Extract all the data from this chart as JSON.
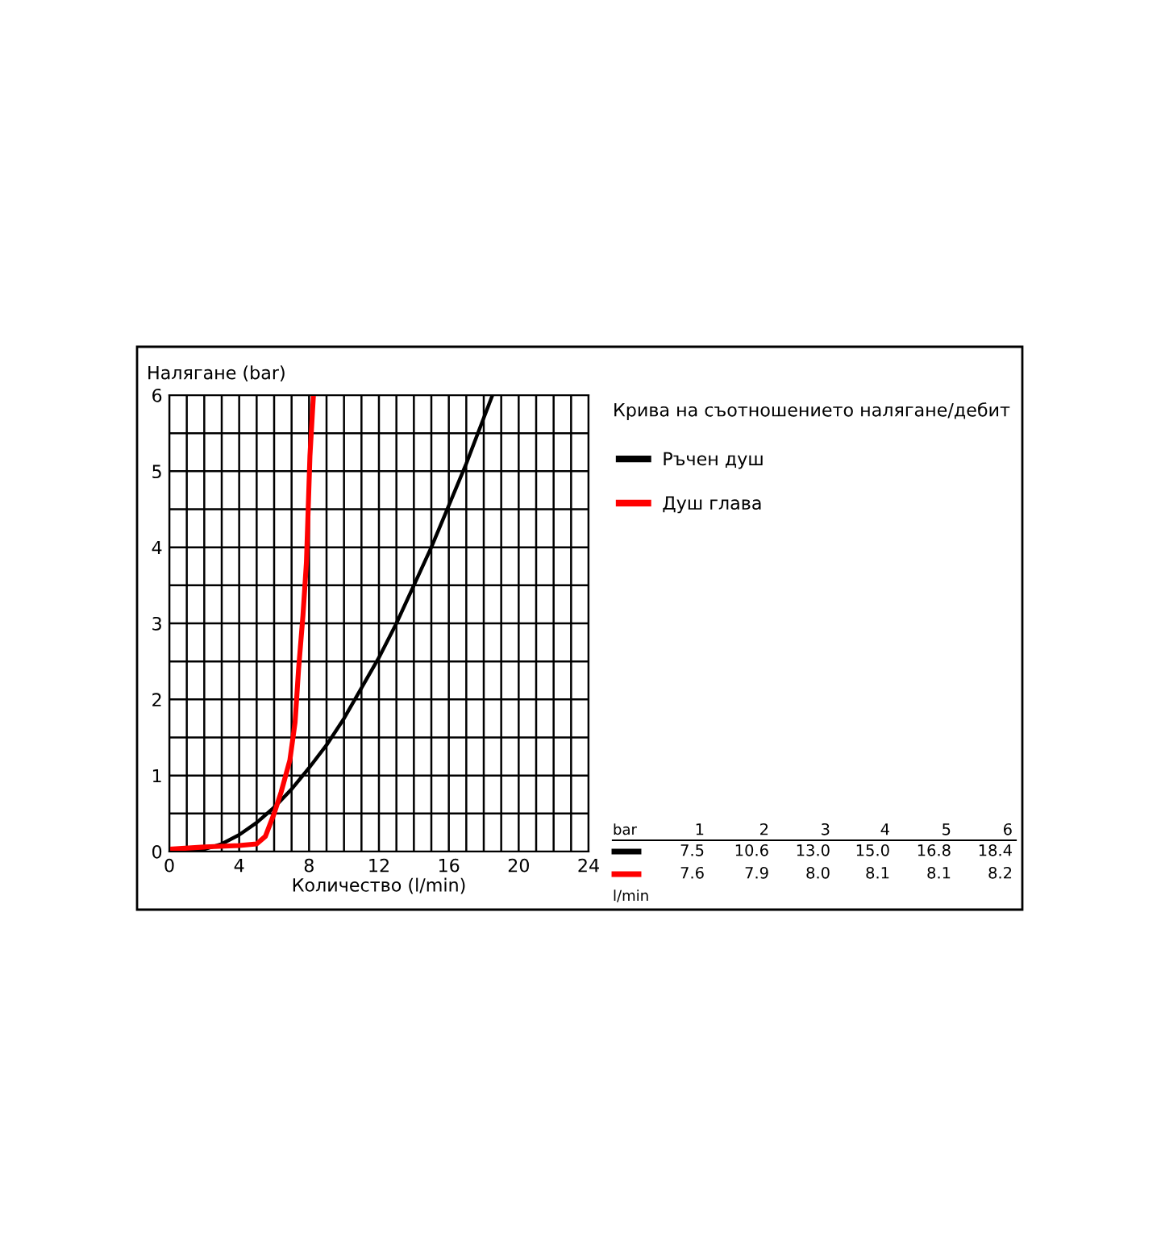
{
  "chart_data": {
    "type": "line",
    "title": "Крива на съотношението налягане/дебит",
    "xlabel": "Количество (l/min)",
    "ylabel": "Налягане (bar)",
    "xlim": [
      0,
      24
    ],
    "xticks": [
      0,
      4,
      8,
      12,
      16,
      20,
      24
    ],
    "ylim": [
      0,
      6
    ],
    "yticks": [
      0,
      1,
      2,
      3,
      4,
      5,
      6
    ],
    "grid": true,
    "legend": "right",
    "series": [
      {
        "name": "Ръчен душ",
        "color": "#000000",
        "x": [
          0,
          2,
          3,
          4,
          5,
          6,
          7,
          8,
          9,
          10,
          11,
          12,
          13,
          14,
          15,
          16,
          17,
          18,
          18.5
        ],
        "values": [
          0,
          0.03,
          0.1,
          0.22,
          0.38,
          0.58,
          0.82,
          1.1,
          1.4,
          1.75,
          2.15,
          2.55,
          3.0,
          3.5,
          4.0,
          4.55,
          5.1,
          5.7,
          6
        ]
      },
      {
        "name": "Душ глава",
        "color": "#ff0000",
        "x": [
          0,
          2,
          4,
          5,
          5.5,
          6.0,
          6.4,
          6.9,
          7.2,
          7.4,
          7.65,
          7.85,
          7.95,
          8.05,
          8.25
        ],
        "values": [
          0.03,
          0.06,
          0.08,
          0.1,
          0.2,
          0.5,
          0.78,
          1.2,
          1.7,
          2.4,
          3.1,
          3.8,
          4.5,
          5.2,
          6
        ]
      }
    ],
    "annotations": [
      "bar",
      "1",
      "2",
      "3",
      "4",
      "5",
      "6",
      "7.5",
      "10.6",
      "13.0",
      "15.0",
      "16.8",
      "18.4",
      "7.6",
      "7.9",
      "8.0",
      "8.1",
      "8.1",
      "8.2",
      "l/min"
    ]
  }
}
